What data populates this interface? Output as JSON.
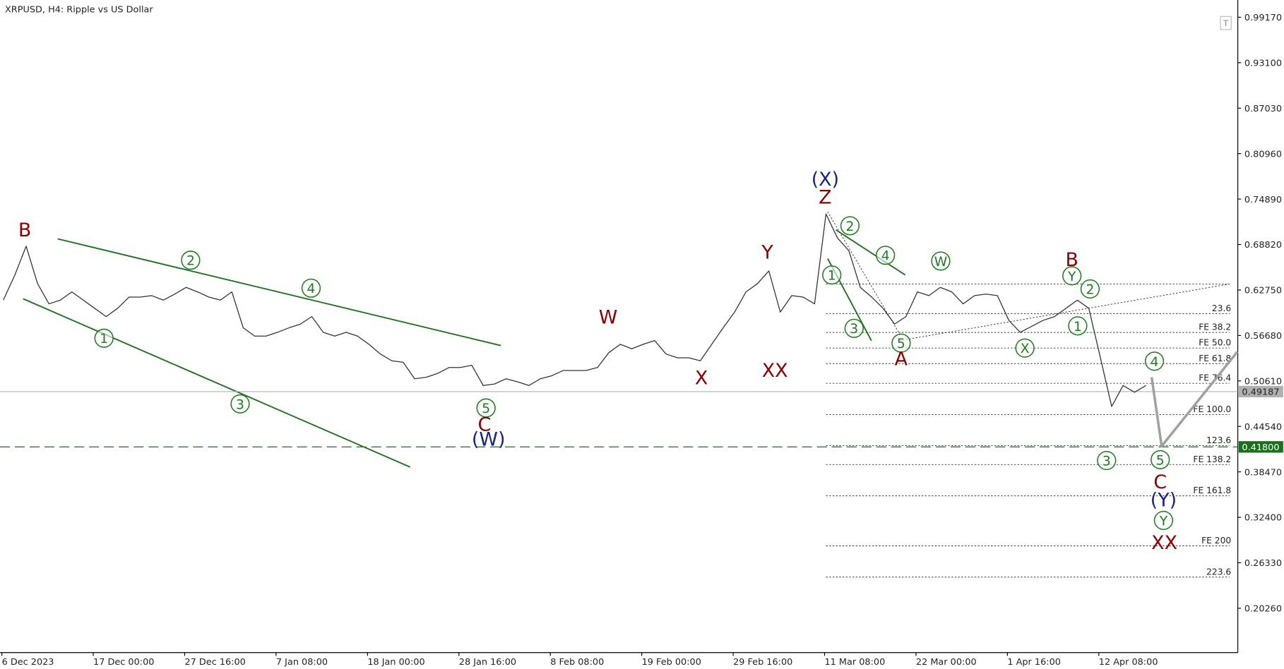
{
  "chart_data": {
    "type": "line",
    "title": "XRPUSD, H4:  Ripple vs US Dollar",
    "icon_text": "T",
    "x": [
      0,
      8,
      16,
      24,
      32,
      40,
      48,
      56,
      64,
      72,
      80,
      88,
      96,
      104,
      112,
      120,
      128,
      136,
      144,
      152,
      160,
      168,
      176,
      184,
      192,
      200,
      208,
      216,
      224,
      232,
      240,
      248,
      256,
      264,
      272,
      280,
      288,
      296,
      304,
      312,
      320,
      328,
      336,
      344,
      352,
      360,
      368,
      376,
      384,
      392,
      400,
      408,
      416,
      424,
      432,
      440,
      448,
      456,
      464,
      472,
      480,
      488,
      496,
      504,
      512,
      520,
      528,
      536,
      544,
      552,
      560,
      568,
      576,
      584,
      592,
      600,
      608,
      616,
      624,
      632,
      640,
      648,
      656,
      664,
      672,
      680,
      688,
      696,
      704,
      712,
      720,
      728,
      736,
      744,
      752,
      760,
      768,
      776,
      784,
      792,
      800
    ],
    "values": [
      0.614,
      0.647,
      0.686,
      0.636,
      0.609,
      0.614,
      0.625,
      0.614,
      0.603,
      0.592,
      0.603,
      0.618,
      0.618,
      0.62,
      0.614,
      0.622,
      0.631,
      0.625,
      0.618,
      0.614,
      0.625,
      0.577,
      0.566,
      0.566,
      0.571,
      0.577,
      0.582,
      0.592,
      0.571,
      0.566,
      0.571,
      0.566,
      0.555,
      0.542,
      0.533,
      0.531,
      0.509,
      0.511,
      0.516,
      0.524,
      0.524,
      0.527,
      0.5,
      0.502,
      0.509,
      0.505,
      0.5,
      0.509,
      0.513,
      0.52,
      0.52,
      0.52,
      0.524,
      0.544,
      0.555,
      0.549,
      0.555,
      0.56,
      0.542,
      0.537,
      0.537,
      0.533,
      0.555,
      0.577,
      0.598,
      0.625,
      0.636,
      0.653,
      0.598,
      0.62,
      0.618,
      0.609,
      0.729,
      0.697,
      0.68,
      0.631,
      0.618,
      0.603,
      0.582,
      0.592,
      0.625,
      0.62,
      0.631,
      0.625,
      0.609,
      0.62,
      0.622,
      0.62,
      0.587,
      0.571,
      0.579,
      0.587,
      0.592,
      0.603,
      0.614,
      0.603,
      0.538,
      0.472,
      0.5,
      0.491,
      0.5
    ],
    "color": "#333333",
    "projection": {
      "x": [
        804,
        811,
        864
      ],
      "values": [
        0.511,
        0.419,
        0.545
      ],
      "color": "#a0a0a0"
    },
    "xlim": [
      -2.3,
      864.3
    ],
    "xticks": [
      {
        "value": -1,
        "label": "6 Dec 2023"
      },
      {
        "value": 63,
        "label": "17 Dec 00:00"
      },
      {
        "value": 127,
        "label": "27 Dec 16:00"
      },
      {
        "value": 191,
        "label": "7 Jan 08:00"
      },
      {
        "value": 255,
        "label": "18 Jan 00:00"
      },
      {
        "value": 319,
        "label": "28 Jan 16:00"
      },
      {
        "value": 383,
        "label": "8 Feb 08:00"
      },
      {
        "value": 447,
        "label": "19 Feb 00:00"
      },
      {
        "value": 511,
        "label": "29 Feb 16:00"
      },
      {
        "value": 575,
        "label": "11 Mar 08:00"
      },
      {
        "value": 639,
        "label": "22 Mar 00:00"
      },
      {
        "value": 703,
        "label": "1 Apr 16:00"
      },
      {
        "value": 767,
        "label": "12 Apr 08:00"
      }
    ],
    "ylim": [
      0.1434,
      1.0147
    ],
    "yticks": [
      {
        "value": 0.9917,
        "label": "0.99170"
      },
      {
        "value": 0.931,
        "label": "0.93100"
      },
      {
        "value": 0.8703,
        "label": "0.87030"
      },
      {
        "value": 0.8096,
        "label": "0.80960"
      },
      {
        "value": 0.7489,
        "label": "0.74890"
      },
      {
        "value": 0.6882,
        "label": "0.68820"
      },
      {
        "value": 0.6275,
        "label": "0.62750"
      },
      {
        "value": 0.5668,
        "label": "0.56680"
      },
      {
        "value": 0.5061,
        "label": "0.50610"
      },
      {
        "value": 0.4454,
        "label": "0.44540"
      },
      {
        "value": 0.3847,
        "label": "0.38470"
      },
      {
        "value": 0.324,
        "label": "0.32400"
      },
      {
        "value": 0.2633,
        "label": "0.26330"
      },
      {
        "value": 0.2026,
        "label": "0.20260"
      }
    ],
    "current_price": 0.49187,
    "target_level": {
      "value": 0.418,
      "label": "0.41800"
    },
    "levels": [
      {
        "label": null,
        "value": 0.6355
      },
      {
        "label": "23.6",
        "value": 0.596
      },
      {
        "label": "FE 38.2",
        "value": 0.5708
      },
      {
        "label": "FE 50.0",
        "value": 0.55
      },
      {
        "label": "FE 61.8",
        "value": 0.5292
      },
      {
        "label": "FE 76.4",
        "value": 0.5029
      },
      {
        "label": "FE 100.0",
        "value": 0.4612
      },
      {
        "label": "123.6",
        "value": 0.4196
      },
      {
        "label": "FE 138.2",
        "value": 0.3944
      },
      {
        "label": "FE 161.8",
        "value": 0.3527
      },
      {
        "label": "FE 200",
        "value": 0.2859
      },
      {
        "label": "223.6",
        "value": 0.2442
      }
    ],
    "annotations": [
      {
        "text": "B",
        "color": "#8b0000",
        "circled": false
      },
      {
        "text": "1",
        "color": "#1f7a1f",
        "circled": true
      },
      {
        "text": "2",
        "color": "#1f7a1f",
        "circled": true
      },
      {
        "text": "3",
        "color": "#1f7a1f",
        "circled": true
      },
      {
        "text": "4",
        "color": "#1f7a1f",
        "circled": true
      },
      {
        "text": "5",
        "color": "#1f7a1f",
        "circled": true
      },
      {
        "text": "C",
        "color": "#8b0000",
        "circled": false
      },
      {
        "text": "(W)",
        "color": "#1a237e",
        "circled": false
      },
      {
        "text": "W",
        "color": "#8b0000",
        "circled": false
      },
      {
        "text": "X",
        "color": "#8b0000",
        "circled": false
      },
      {
        "text": "Y",
        "color": "#8b0000",
        "circled": false
      },
      {
        "text": "XX",
        "color": "#8b0000",
        "circled": false
      },
      {
        "text": "(X)",
        "color": "#1a237e",
        "circled": false
      },
      {
        "text": "Z",
        "color": "#8b0000",
        "circled": false
      },
      {
        "text": "2",
        "color": "#1f7a1f",
        "circled": true
      },
      {
        "text": "1",
        "color": "#1f7a1f",
        "circled": true
      },
      {
        "text": "4",
        "color": "#1f7a1f",
        "circled": true
      },
      {
        "text": "3",
        "color": "#1f7a1f",
        "circled": true
      },
      {
        "text": "5",
        "color": "#1f7a1f",
        "circled": true
      },
      {
        "text": "A",
        "color": "#8b0000",
        "circled": false
      },
      {
        "text": "W",
        "color": "#1f7a1f",
        "circled": true
      },
      {
        "text": "X",
        "color": "#1f7a1f",
        "circled": true
      },
      {
        "text": "B",
        "color": "#8b0000",
        "circled": false
      },
      {
        "text": "Y",
        "color": "#1f7a1f",
        "circled": true
      },
      {
        "text": "2",
        "color": "#1f7a1f",
        "circled": true
      },
      {
        "text": "1",
        "color": "#1f7a1f",
        "circled": true
      },
      {
        "text": "4",
        "color": "#1f7a1f",
        "circled": true
      },
      {
        "text": "3",
        "color": "#1f7a1f",
        "circled": true
      },
      {
        "text": "5",
        "color": "#1f7a1f",
        "circled": true
      },
      {
        "text": "C",
        "color": "#8b0000",
        "circled": false
      },
      {
        "text": "(Y)",
        "color": "#1a237e",
        "circled": false
      },
      {
        "text": "Y",
        "color": "#1f7a1f",
        "circled": true
      },
      {
        "text": "XX",
        "color": "#8b0000",
        "circled": false
      }
    ]
  }
}
